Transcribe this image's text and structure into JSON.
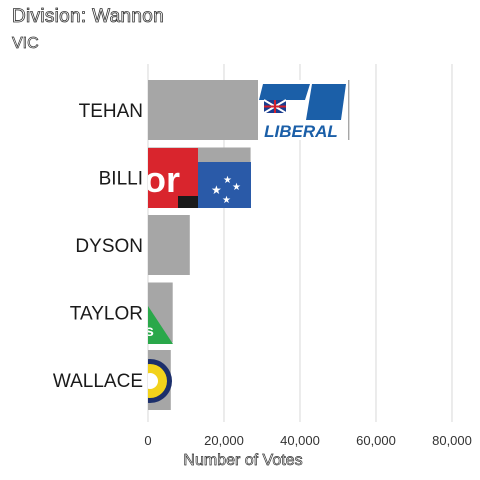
{
  "header": {
    "title": "Division: Wannon",
    "subtitle": "VIC"
  },
  "chart_data": {
    "type": "bar",
    "orientation": "horizontal",
    "title": "Division: Wannon",
    "subtitle": "VIC",
    "xlabel": "Number of Votes",
    "ylabel": "",
    "categories": [
      "TEHAN",
      "BILLI",
      "DYSON",
      "TAYLOR",
      "WALLACE"
    ],
    "values": [
      53000,
      27000,
      11000,
      6500,
      6000
    ],
    "xlim": [
      0,
      80000
    ],
    "xticks": [
      0,
      20000,
      40000,
      60000,
      80000
    ],
    "xtick_labels": [
      "0",
      "20,000",
      "40,000",
      "60,000",
      "80,000"
    ],
    "grid": "vertical",
    "bar_color": "#a6a6a6",
    "logos": [
      {
        "category": "TEHAN",
        "party": "LIBERAL",
        "icon": "liberal-party-logo"
      },
      {
        "category": "BILLI",
        "party": "Labor",
        "icon": "labor-party-logo"
      },
      {
        "category": "TAYLOR",
        "party": "Greens",
        "icon": "greens-party-logo"
      },
      {
        "category": "WALLACE",
        "party": "Australian Christians",
        "icon": "party-seal-logo"
      }
    ]
  }
}
